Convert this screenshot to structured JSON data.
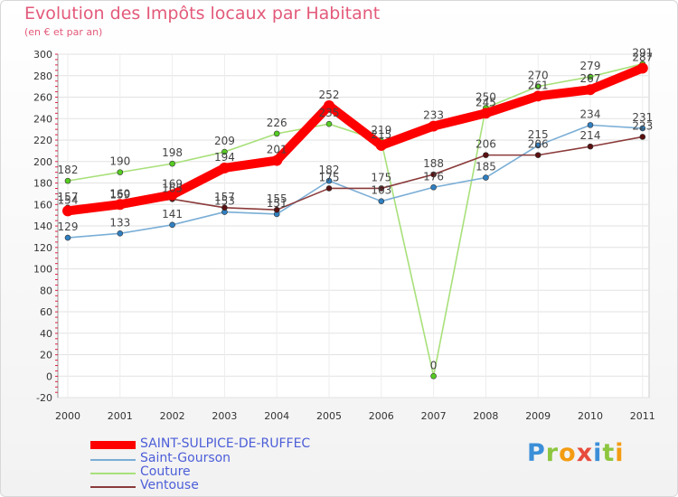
{
  "title": "Evolution des Impôts locaux par Habitant",
  "subtitle": "(en € et par an)",
  "logo": {
    "text": "Proxiti",
    "letters": [
      {
        "ch": "P",
        "color": "#3b8fd8"
      },
      {
        "ch": "r",
        "color": "#8dc63f"
      },
      {
        "ch": "o",
        "color": "#f39c12"
      },
      {
        "ch": "x",
        "color": "#e74c3c"
      },
      {
        "ch": "i",
        "color": "#3b8fd8"
      },
      {
        "ch": "t",
        "color": "#8dc63f"
      },
      {
        "ch": "i",
        "color": "#f39c12"
      }
    ]
  },
  "chart_data": {
    "type": "line",
    "title": "Evolution des Impôts locaux par Habitant",
    "subtitle": "(en € et par an)",
    "xlabel": "",
    "ylabel": "",
    "ylim": [
      -20,
      300
    ],
    "yticks": [
      -20,
      0,
      20,
      40,
      60,
      80,
      100,
      120,
      140,
      160,
      180,
      200,
      220,
      240,
      260,
      280,
      300
    ],
    "grid": true,
    "categories": [
      "2000",
      "2001",
      "2002",
      "2003",
      "2004",
      "2005",
      "2006",
      "2007",
      "2008",
      "2009",
      "2010",
      "2011"
    ],
    "series": [
      {
        "name": "SAINT-SULPICE-DE-RUFFEC",
        "color": "#ff0000",
        "marker_color": "#ff0000",
        "values": [
          154,
          160,
          169,
          194,
          201,
          252,
          215,
          233,
          245,
          261,
          267,
          287
        ],
        "labels": [
          "154",
          "160",
          "169",
          "194",
          "201",
          "252",
          "215",
          "233",
          "245",
          "261",
          "267",
          "287"
        ],
        "emphasis": true
      },
      {
        "name": "Saint-Gourson",
        "color": "#7aaed6",
        "marker_color": "#2f7fc1",
        "values": [
          129,
          133,
          141,
          153,
          151,
          182,
          163,
          176,
          185,
          215,
          234,
          231
        ],
        "labels": [
          "129",
          "133",
          "141",
          "153",
          "151",
          "182",
          "163",
          "176",
          "185",
          "215",
          "234",
          "231"
        ],
        "emphasis": false
      },
      {
        "name": "Couture",
        "color": "#a8e07a",
        "marker_color": "#55cc22",
        "values": [
          182,
          190,
          198,
          209,
          226,
          235,
          219,
          0,
          250,
          270,
          279,
          291
        ],
        "labels": [
          "182",
          "190",
          "198",
          "209",
          "226",
          "235",
          "219",
          "0",
          "250",
          "270",
          "279",
          "291"
        ],
        "emphasis": false
      },
      {
        "name": "Ventouse",
        "color": "#8b3a3a",
        "marker_color": "#5a1010",
        "values": [
          157,
          159,
          165,
          157,
          155,
          175,
          175,
          188,
          206,
          206,
          214,
          223
        ],
        "labels": [
          "157",
          "159",
          "165",
          "157",
          "155",
          "175",
          "175",
          "188",
          "206",
          "206",
          "214",
          "223"
        ],
        "emphasis": false
      }
    ]
  }
}
